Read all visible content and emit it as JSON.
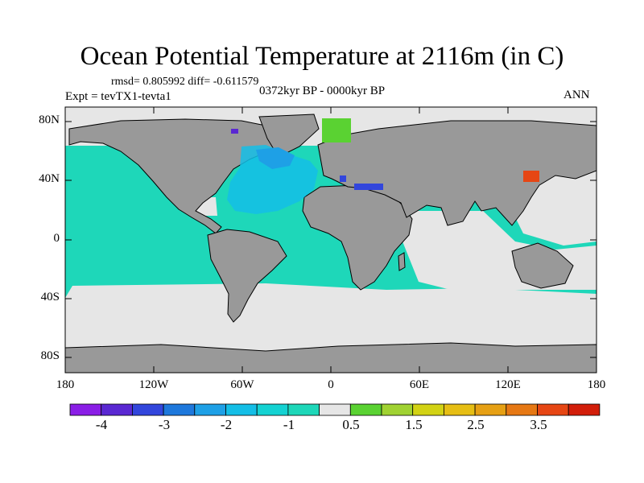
{
  "title": "Ocean Potential Temperature at 2116m (in C)",
  "stats": "rmsd= 0.805992 diff= -0.611579",
  "experiment": "Expt = tevTX1-tevta1",
  "period": "0372kyr BP - 0000kyr BP",
  "season": "ANN",
  "map": {
    "projection": "cylindrical equidistant",
    "lon_range": [
      -180,
      180
    ],
    "lat_range": [
      -90,
      90
    ],
    "lat_ticks": [
      "80N",
      "40N",
      "0",
      "40S",
      "80S"
    ],
    "lon_ticks": [
      "180",
      "120W",
      "60W",
      "0",
      "60E",
      "120E",
      "180"
    ],
    "land_color": "#999999",
    "no_data_color": "#e6e6e6"
  },
  "colorbar": {
    "labels": [
      "-4",
      "-3",
      "-2",
      "-1",
      "0.5",
      "1.5",
      "2.5",
      "3.5"
    ],
    "colors": [
      "#8a1ee6",
      "#5a28d2",
      "#3246dc",
      "#1e78dc",
      "#1ea0e6",
      "#14bee6",
      "#14d2d2",
      "#1ed7b9",
      "#e6e6e6",
      "#5ad232",
      "#a0d232",
      "#d2d214",
      "#e6be14",
      "#e6a014",
      "#e67814",
      "#e64614",
      "#d21e0a"
    ]
  }
}
